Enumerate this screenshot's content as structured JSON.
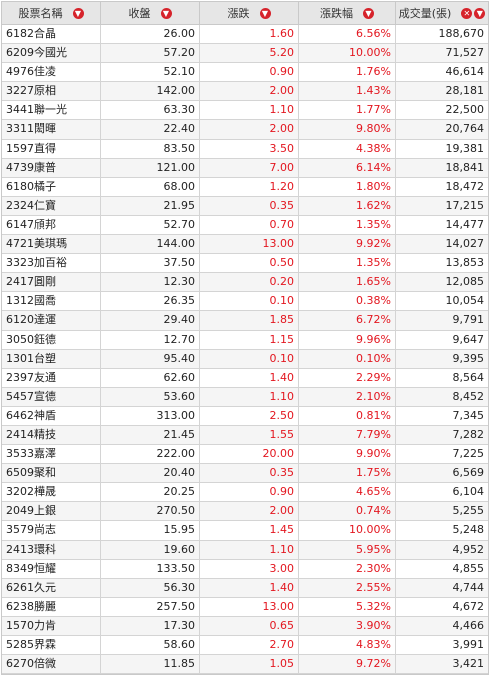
{
  "headers": [
    "股票名稱",
    "收盤",
    "漲跌",
    "漲跌幅",
    "成交量(張)"
  ],
  "icons": {
    "sort": "sort-down-icon",
    "clear": "clear-sort-icon"
  },
  "colors": {
    "up": "#e3161f",
    "header_bg": "#e6e6e6"
  },
  "rows": [
    {
      "name": "6182合晶",
      "close": "26.00",
      "change": "1.60",
      "pct": "6.56%",
      "vol": "188,670"
    },
    {
      "name": "6209今國光",
      "close": "57.20",
      "change": "5.20",
      "pct": "10.00%",
      "vol": "71,527"
    },
    {
      "name": "4976佳凌",
      "close": "52.10",
      "change": "0.90",
      "pct": "1.76%",
      "vol": "46,614"
    },
    {
      "name": "3227原相",
      "close": "142.00",
      "change": "2.00",
      "pct": "1.43%",
      "vol": "28,181"
    },
    {
      "name": "3441聯一光",
      "close": "63.30",
      "change": "1.10",
      "pct": "1.77%",
      "vol": "22,500"
    },
    {
      "name": "3311閎暉",
      "close": "22.40",
      "change": "2.00",
      "pct": "9.80%",
      "vol": "20,764"
    },
    {
      "name": "1597直得",
      "close": "83.50",
      "change": "3.50",
      "pct": "4.38%",
      "vol": "19,381"
    },
    {
      "name": "4739康普",
      "close": "121.00",
      "change": "7.00",
      "pct": "6.14%",
      "vol": "18,841"
    },
    {
      "name": "6180橘子",
      "close": "68.00",
      "change": "1.20",
      "pct": "1.80%",
      "vol": "18,472"
    },
    {
      "name": "2324仁寶",
      "close": "21.95",
      "change": "0.35",
      "pct": "1.62%",
      "vol": "17,215"
    },
    {
      "name": "6147頎邦",
      "close": "52.70",
      "change": "0.70",
      "pct": "1.35%",
      "vol": "14,477"
    },
    {
      "name": "4721美琪瑪",
      "close": "144.00",
      "change": "13.00",
      "pct": "9.92%",
      "vol": "14,027"
    },
    {
      "name": "3323加百裕",
      "close": "37.50",
      "change": "0.50",
      "pct": "1.35%",
      "vol": "13,853"
    },
    {
      "name": "2417圓剛",
      "close": "12.30",
      "change": "0.20",
      "pct": "1.65%",
      "vol": "12,085"
    },
    {
      "name": "1312國喬",
      "close": "26.35",
      "change": "0.10",
      "pct": "0.38%",
      "vol": "10,054"
    },
    {
      "name": "6120達運",
      "close": "29.40",
      "change": "1.85",
      "pct": "6.72%",
      "vol": "9,791"
    },
    {
      "name": "3050鈺德",
      "close": "12.70",
      "change": "1.15",
      "pct": "9.96%",
      "vol": "9,647"
    },
    {
      "name": "1301台塑",
      "close": "95.40",
      "change": "0.10",
      "pct": "0.10%",
      "vol": "9,395"
    },
    {
      "name": "2397友通",
      "close": "62.60",
      "change": "1.40",
      "pct": "2.29%",
      "vol": "8,564"
    },
    {
      "name": "5457宣德",
      "close": "53.60",
      "change": "1.10",
      "pct": "2.10%",
      "vol": "8,452"
    },
    {
      "name": "6462神盾",
      "close": "313.00",
      "change": "2.50",
      "pct": "0.81%",
      "vol": "7,345"
    },
    {
      "name": "2414精技",
      "close": "21.45",
      "change": "1.55",
      "pct": "7.79%",
      "vol": "7,282"
    },
    {
      "name": "3533嘉澤",
      "close": "222.00",
      "change": "20.00",
      "pct": "9.90%",
      "vol": "7,225"
    },
    {
      "name": "6509聚和",
      "close": "20.40",
      "change": "0.35",
      "pct": "1.75%",
      "vol": "6,569"
    },
    {
      "name": "3202樺晟",
      "close": "20.25",
      "change": "0.90",
      "pct": "4.65%",
      "vol": "6,104"
    },
    {
      "name": "2049上銀",
      "close": "270.50",
      "change": "2.00",
      "pct": "0.74%",
      "vol": "5,255"
    },
    {
      "name": "3579尚志",
      "close": "15.95",
      "change": "1.45",
      "pct": "10.00%",
      "vol": "5,248"
    },
    {
      "name": "2413環科",
      "close": "19.60",
      "change": "1.10",
      "pct": "5.95%",
      "vol": "4,952"
    },
    {
      "name": "8349恒耀",
      "close": "133.50",
      "change": "3.00",
      "pct": "2.30%",
      "vol": "4,855"
    },
    {
      "name": "6261久元",
      "close": "56.30",
      "change": "1.40",
      "pct": "2.55%",
      "vol": "4,744"
    },
    {
      "name": "6238勝麗",
      "close": "257.50",
      "change": "13.00",
      "pct": "5.32%",
      "vol": "4,672"
    },
    {
      "name": "1570力肯",
      "close": "17.30",
      "change": "0.65",
      "pct": "3.90%",
      "vol": "4,466"
    },
    {
      "name": "5285界霖",
      "close": "58.60",
      "change": "2.70",
      "pct": "4.83%",
      "vol": "3,991"
    },
    {
      "name": "6270倍微",
      "close": "11.85",
      "change": "1.05",
      "pct": "9.72%",
      "vol": "3,421"
    }
  ]
}
